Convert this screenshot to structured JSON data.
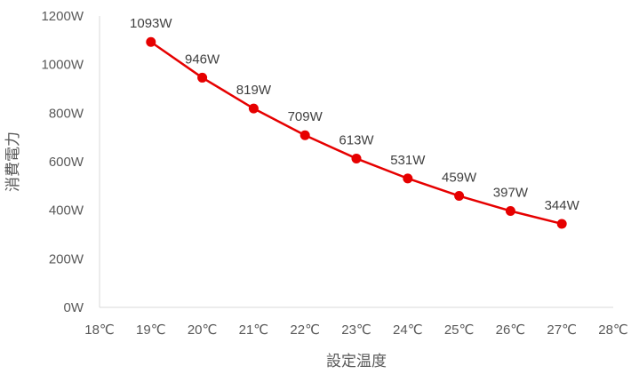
{
  "chart_data": {
    "type": "line",
    "title": "",
    "xlabel": "設定温度",
    "ylabel": "消費電力",
    "x_ticks": [
      "18℃",
      "19℃",
      "20℃",
      "21℃",
      "22℃",
      "23℃",
      "24℃",
      "25℃",
      "26℃",
      "27℃",
      "28℃"
    ],
    "y_ticks": [
      "0W",
      "200W",
      "400W",
      "600W",
      "800W",
      "1000W",
      "1200W"
    ],
    "xlim": [
      18,
      28
    ],
    "ylim": [
      0,
      1200
    ],
    "grid": false,
    "legend": "none",
    "series": [
      {
        "color": "#e60000",
        "x": [
          19,
          20,
          21,
          22,
          23,
          24,
          25,
          26,
          27
        ],
        "values": [
          1093,
          946,
          819,
          709,
          613,
          531,
          459,
          397,
          344
        ],
        "data_labels": [
          "1093W",
          "946W",
          "819W",
          "709W",
          "613W",
          "531W",
          "459W",
          "397W",
          "344W"
        ]
      }
    ],
    "axis_color": "#d9d9d9"
  }
}
